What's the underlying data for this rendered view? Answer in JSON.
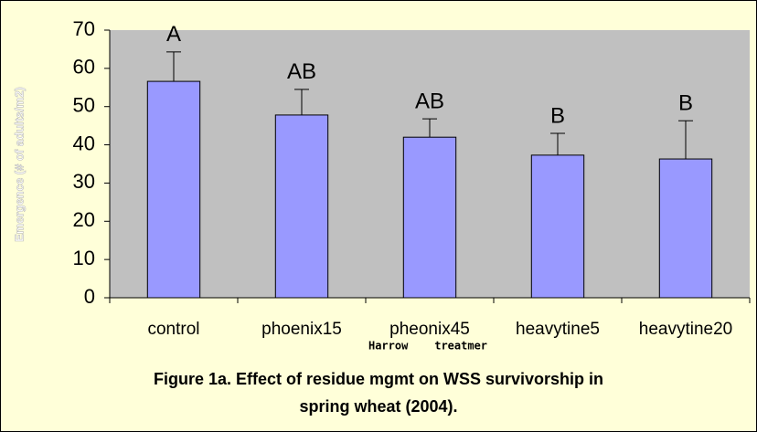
{
  "chart_data": {
    "type": "bar",
    "title": "Figure 1a.  Effect of residue mgmt on WSS survivorship in spring wheat (2004).",
    "title_lines": [
      "Figure 1a.  Effect of residue mgmt on WSS survivorship in",
      "spring wheat (2004)."
    ],
    "x_label": "Harrow    treatmer",
    "y_label": "Emergence (# of adults/m2)",
    "categories": [
      "control",
      "phoenix15",
      "pheonix45",
      "heavytine5",
      "heavytine20"
    ],
    "values": [
      56.6,
      47.8,
      42,
      37.3,
      36.3
    ],
    "errors": [
      7.7,
      6.7,
      4.8,
      5.7,
      10
    ],
    "letters": [
      "A",
      "AB",
      "AB",
      "B",
      "B"
    ],
    "color": "#9999ff",
    "ylim": [
      0,
      70
    ],
    "yticks": [
      0,
      10,
      20,
      30,
      40,
      50,
      60,
      70
    ],
    "grid": false
  }
}
